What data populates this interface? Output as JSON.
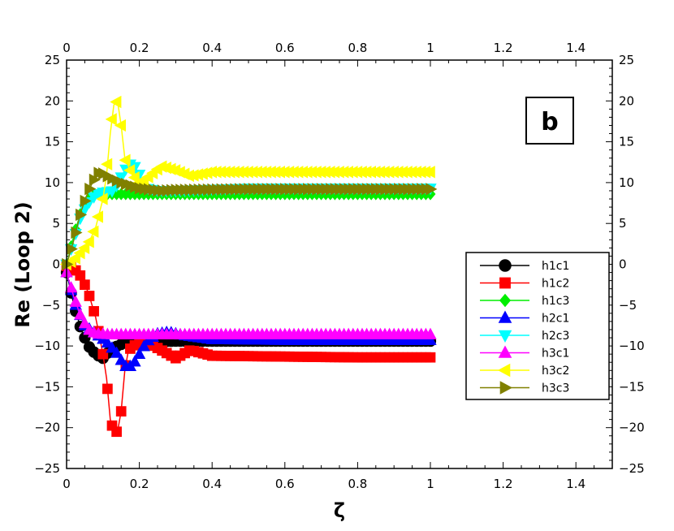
{
  "chart_data": {
    "type": "line",
    "panel_label": "b",
    "xlabel": "ζ",
    "ylabel": "Re (Loop 2)",
    "xlim": [
      0,
      1.5
    ],
    "ylim": [
      -25,
      25
    ],
    "x_ticks": [
      "0",
      "0.2",
      "0.4",
      "0.6",
      "0.8",
      "1",
      "1.2",
      "1.4"
    ],
    "x_tick_values": [
      0,
      0.2,
      0.4,
      0.6,
      0.8,
      1.0,
      1.2,
      1.4
    ],
    "y_ticks": [
      "25",
      "20",
      "15",
      "10",
      "5",
      "0",
      "−5",
      "−10",
      "−15",
      "−20",
      "−25"
    ],
    "y_tick_values": [
      25,
      20,
      15,
      10,
      5,
      0,
      -5,
      -10,
      -15,
      -20,
      -25
    ],
    "grid": false,
    "legend_position": "right",
    "series": [
      {
        "name": "h1c1",
        "color": "#000000",
        "marker": "circle",
        "points": [
          [
            0,
            -1
          ],
          [
            0.02,
            -5
          ],
          [
            0.04,
            -8
          ],
          [
            0.06,
            -10
          ],
          [
            0.08,
            -11
          ],
          [
            0.1,
            -11.5
          ],
          [
            0.12,
            -10.5
          ],
          [
            0.14,
            -10
          ],
          [
            0.16,
            -9.6
          ],
          [
            0.2,
            -9.5
          ],
          [
            0.3,
            -9.4
          ],
          [
            0.5,
            -9.4
          ],
          [
            0.7,
            -9.4
          ],
          [
            0.9,
            -9.4
          ],
          [
            1.0,
            -9.4
          ]
        ]
      },
      {
        "name": "h1c2",
        "color": "#ff0000",
        "marker": "square",
        "points": [
          [
            0,
            -0.2
          ],
          [
            0.02,
            -0.5
          ],
          [
            0.04,
            -1.5
          ],
          [
            0.06,
            -3.5
          ],
          [
            0.08,
            -6.5
          ],
          [
            0.1,
            -11
          ],
          [
            0.11,
            -14
          ],
          [
            0.12,
            -19
          ],
          [
            0.13,
            -20.5
          ],
          [
            0.14,
            -20.5
          ],
          [
            0.15,
            -18
          ],
          [
            0.16,
            -13
          ],
          [
            0.17,
            -10.5
          ],
          [
            0.2,
            -9.5
          ],
          [
            0.24,
            -10
          ],
          [
            0.3,
            -11.5
          ],
          [
            0.34,
            -10.5
          ],
          [
            0.4,
            -11.2
          ],
          [
            0.6,
            -11.3
          ],
          [
            0.8,
            -11.4
          ],
          [
            1.0,
            -11.4
          ]
        ]
      },
      {
        "name": "h1c3",
        "color": "#00ee00",
        "marker": "diamond",
        "points": [
          [
            0,
            0
          ],
          [
            0.02,
            3.5
          ],
          [
            0.04,
            6.5
          ],
          [
            0.06,
            8
          ],
          [
            0.08,
            8.6
          ],
          [
            0.12,
            8.6
          ],
          [
            0.2,
            8.6
          ],
          [
            0.4,
            8.6
          ],
          [
            0.6,
            8.6
          ],
          [
            0.8,
            8.6
          ],
          [
            1.0,
            8.6
          ]
        ]
      },
      {
        "name": "h2c1",
        "color": "#0000ff",
        "marker": "triangle-up",
        "points": [
          [
            0,
            -1
          ],
          [
            0.02,
            -4.5
          ],
          [
            0.05,
            -7.5
          ],
          [
            0.08,
            -8.5
          ],
          [
            0.11,
            -9.5
          ],
          [
            0.14,
            -11
          ],
          [
            0.16,
            -12.5
          ],
          [
            0.18,
            -12.5
          ],
          [
            0.2,
            -11
          ],
          [
            0.22,
            -9.5
          ],
          [
            0.25,
            -8.5
          ],
          [
            0.28,
            -8.3
          ],
          [
            0.32,
            -8.7
          ],
          [
            0.4,
            -9.2
          ],
          [
            0.6,
            -9.3
          ],
          [
            0.8,
            -9.3
          ],
          [
            1.0,
            -9.3
          ]
        ]
      },
      {
        "name": "h2c3",
        "color": "#00ffff",
        "marker": "triangle-down",
        "points": [
          [
            0,
            0
          ],
          [
            0.02,
            3
          ],
          [
            0.04,
            6
          ],
          [
            0.06,
            7.5
          ],
          [
            0.08,
            8.5
          ],
          [
            0.1,
            8.8
          ],
          [
            0.13,
            9
          ],
          [
            0.16,
            11.5
          ],
          [
            0.18,
            12.5
          ],
          [
            0.2,
            11
          ],
          [
            0.22,
            9.3
          ],
          [
            0.25,
            9
          ],
          [
            0.3,
            9
          ],
          [
            0.5,
            9.3
          ],
          [
            0.7,
            9.3
          ],
          [
            1.0,
            9.3
          ]
        ]
      },
      {
        "name": "h3c1",
        "color": "#ff00ff",
        "marker": "triangle-up",
        "points": [
          [
            0,
            -1
          ],
          [
            0.02,
            -4
          ],
          [
            0.04,
            -6.5
          ],
          [
            0.06,
            -8
          ],
          [
            0.08,
            -8.5
          ],
          [
            0.12,
            -8.6
          ],
          [
            0.2,
            -8.6
          ],
          [
            0.4,
            -8.6
          ],
          [
            0.6,
            -8.6
          ],
          [
            0.8,
            -8.6
          ],
          [
            1.0,
            -8.6
          ]
        ]
      },
      {
        "name": "h3c2",
        "color": "#ffff00",
        "marker": "triangle-left",
        "points": [
          [
            0,
            0
          ],
          [
            0.02,
            0.5
          ],
          [
            0.04,
            1.5
          ],
          [
            0.06,
            2.5
          ],
          [
            0.08,
            4.5
          ],
          [
            0.1,
            8
          ],
          [
            0.11,
            11
          ],
          [
            0.12,
            16
          ],
          [
            0.13,
            19.5
          ],
          [
            0.14,
            20
          ],
          [
            0.15,
            17
          ],
          [
            0.16,
            13
          ],
          [
            0.18,
            11
          ],
          [
            0.2,
            10
          ],
          [
            0.22,
            10.5
          ],
          [
            0.26,
            12
          ],
          [
            0.3,
            11.5
          ],
          [
            0.34,
            10.8
          ],
          [
            0.4,
            11.3
          ],
          [
            0.6,
            11.3
          ],
          [
            0.8,
            11.3
          ],
          [
            1.0,
            11.3
          ]
        ]
      },
      {
        "name": "h3c3",
        "color": "#808000",
        "marker": "triangle-right",
        "points": [
          [
            0,
            0
          ],
          [
            0.02,
            3
          ],
          [
            0.04,
            6.5
          ],
          [
            0.06,
            9
          ],
          [
            0.08,
            10.8
          ],
          [
            0.09,
            11.3
          ],
          [
            0.1,
            11.1
          ],
          [
            0.12,
            10.6
          ],
          [
            0.15,
            10
          ],
          [
            0.2,
            9.3
          ],
          [
            0.26,
            9
          ],
          [
            0.3,
            9.1
          ],
          [
            0.5,
            9.2
          ],
          [
            0.7,
            9.2
          ],
          [
            1.0,
            9.2
          ]
        ]
      }
    ]
  }
}
